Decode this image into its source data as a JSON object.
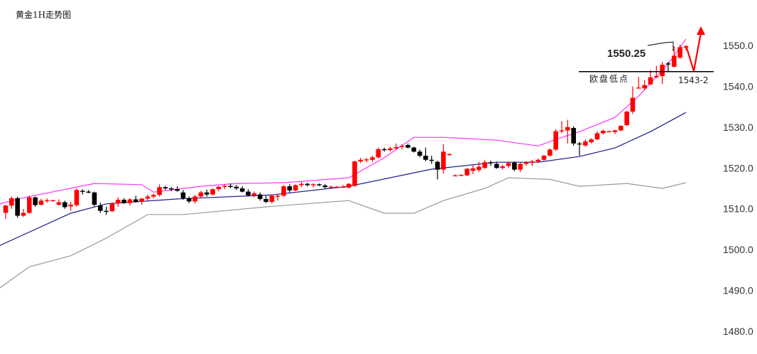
{
  "title": "黄金1H走势图",
  "chart_data": {
    "type": "candlestick",
    "title": "黄金1H走势图",
    "ylim": [
      1480,
      1550
    ],
    "yticks": [
      "1480.0",
      "1490.0",
      "1500.0",
      "1510.0",
      "1520.0",
      "1530.0",
      "1540.0",
      "1550.0"
    ],
    "colors": {
      "up": "#ff0000",
      "down": "#000000",
      "upper_band": "#ff33ff",
      "mid_band": "#1a1a8c",
      "lower_band": "#999999",
      "arrow": "#ff0000"
    },
    "ohlc": [
      [
        1509,
        1511,
        1507.5,
        1510.8
      ],
      [
        1510.8,
        1513,
        1510,
        1512.6
      ],
      [
        1512.6,
        1513,
        1507.8,
        1508.3
      ],
      [
        1508.3,
        1510,
        1508,
        1509
      ],
      [
        1509,
        1513.2,
        1508.8,
        1512.8
      ],
      [
        1512.8,
        1513,
        1510.5,
        1510.9
      ],
      [
        1511,
        1512.5,
        1510.8,
        1512
      ],
      [
        1512,
        1512.5,
        1511.5,
        1512.1
      ],
      [
        1512,
        1512.2,
        1511.8,
        1512.1
      ],
      [
        1511,
        1512.3,
        1510.8,
        1511.6
      ],
      [
        1511.6,
        1512,
        1510,
        1510.4
      ],
      [
        1510.6,
        1511.7,
        1509.5,
        1511
      ],
      [
        1510.9,
        1515,
        1510.5,
        1514.6
      ],
      [
        1514.4,
        1514.8,
        1513.5,
        1514.2
      ],
      [
        1514.2,
        1514.6,
        1513.8,
        1514
      ],
      [
        1514,
        1514.2,
        1510.6,
        1511
      ],
      [
        1510.8,
        1511.5,
        1509,
        1509.5
      ],
      [
        1509.5,
        1510.5,
        1508.5,
        1509.4
      ],
      [
        1509.4,
        1511.6,
        1509.2,
        1511.3
      ],
      [
        1511.3,
        1512.8,
        1510.5,
        1512.2
      ],
      [
        1512.2,
        1512.6,
        1511.2,
        1511.4
      ],
      [
        1511.4,
        1512.6,
        1510.8,
        1512.3
      ],
      [
        1512.3,
        1513.2,
        1511.5,
        1511.7
      ],
      [
        1511.7,
        1512.6,
        1511,
        1512.5
      ],
      [
        1512.5,
        1513.5,
        1512,
        1513
      ],
      [
        1513,
        1513.7,
        1512.5,
        1513.4
      ],
      [
        1513.4,
        1516,
        1513,
        1515.3
      ],
      [
        1515.3,
        1515.6,
        1514.6,
        1515
      ],
      [
        1515,
        1515.3,
        1514.3,
        1514.8
      ],
      [
        1514.8,
        1515.5,
        1514.2,
        1514.4
      ],
      [
        1514,
        1514.6,
        1512.2,
        1512.6
      ],
      [
        1512.6,
        1513,
        1511.4,
        1511.8
      ],
      [
        1511.8,
        1513.4,
        1511.3,
        1513
      ],
      [
        1513,
        1514.4,
        1512.8,
        1514
      ],
      [
        1514,
        1514.7,
        1513,
        1513.5
      ],
      [
        1513.5,
        1515,
        1513.3,
        1514.8
      ],
      [
        1514.8,
        1515.6,
        1514.3,
        1515.4
      ],
      [
        1515.4,
        1516,
        1514.8,
        1515.6
      ],
      [
        1515.6,
        1516.2,
        1515,
        1515.4
      ],
      [
        1515.4,
        1515.8,
        1514.6,
        1515
      ],
      [
        1515,
        1515.5,
        1514,
        1514.2
      ],
      [
        1514.2,
        1514.8,
        1513,
        1513.3
      ],
      [
        1513.3,
        1514.2,
        1512.8,
        1513.8
      ],
      [
        1513.5,
        1514,
        1512,
        1512.4
      ],
      [
        1512.4,
        1513.2,
        1511.4,
        1511.7
      ],
      [
        1511.7,
        1513.5,
        1511.3,
        1513.2
      ],
      [
        1513,
        1513.5,
        1512,
        1513.2
      ],
      [
        1513.2,
        1515.8,
        1513,
        1515.5
      ],
      [
        1515.5,
        1516,
        1514,
        1514.5
      ],
      [
        1514.5,
        1516,
        1514.3,
        1515.8
      ],
      [
        1515.8,
        1516.6,
        1515.3,
        1516.1
      ],
      [
        1516.1,
        1516.4,
        1515.5,
        1515.8
      ],
      [
        1515.8,
        1516.3,
        1515.2,
        1516
      ],
      [
        1516,
        1516.2,
        1515.5,
        1515.9
      ],
      [
        1515.7,
        1516.1,
        1515,
        1515.3
      ],
      [
        1515.3,
        1515.7,
        1515,
        1515.4
      ],
      [
        1515.4,
        1515.6,
        1515.2,
        1515.4
      ],
      [
        1515.3,
        1515.8,
        1515.1,
        1515.4
      ],
      [
        1515.2,
        1516.3,
        1515,
        1516.1
      ],
      [
        1515.6,
        1521.8,
        1515.4,
        1521.6
      ],
      [
        1521.6,
        1522.5,
        1521.2,
        1522
      ],
      [
        1522,
        1522.5,
        1521.4,
        1522.1
      ],
      [
        1522,
        1523,
        1521.5,
        1522.6
      ],
      [
        1522.6,
        1525,
        1522.3,
        1524.6
      ],
      [
        1524.6,
        1525,
        1524,
        1524.4
      ],
      [
        1524.4,
        1525.2,
        1524,
        1524.8
      ],
      [
        1524.8,
        1526,
        1524.5,
        1525.1
      ],
      [
        1525.2,
        1525.8,
        1524.6,
        1525.4
      ],
      [
        1525.6,
        1526,
        1524.8,
        1525
      ],
      [
        1525,
        1525.2,
        1523.8,
        1524
      ],
      [
        1524,
        1524.5,
        1522.6,
        1523
      ],
      [
        1523,
        1525,
        1521.6,
        1522
      ],
      [
        1522,
        1523,
        1521,
        1521.8
      ],
      [
        1521.5,
        1521.8,
        1517.2,
        1519.6
      ],
      [
        1519.6,
        1525.8,
        1518.6,
        1524
      ],
      [
        1523.2,
        1523.6,
        1523,
        1523.4
      ],
      [
        1518.2,
        1518.4,
        1518,
        1518.2
      ],
      [
        1518.3,
        1518.5,
        1518.1,
        1518.3
      ],
      [
        1518.2,
        1520,
        1518,
        1519.8
      ],
      [
        1519.3,
        1520.8,
        1518.5,
        1519.9
      ],
      [
        1519.5,
        1521.5,
        1519,
        1520.3
      ],
      [
        1520,
        1522,
        1519.8,
        1521.4
      ],
      [
        1521.4,
        1521.8,
        1520.5,
        1521.2
      ],
      [
        1521,
        1521.5,
        1519.8,
        1520
      ],
      [
        1520,
        1520.8,
        1519.6,
        1520.4
      ],
      [
        1520.5,
        1521.6,
        1520,
        1521.2
      ],
      [
        1521.3,
        1521.6,
        1519.2,
        1519.6
      ],
      [
        1519.6,
        1521.4,
        1519,
        1521
      ],
      [
        1521,
        1521.7,
        1520.5,
        1521.4
      ],
      [
        1521.3,
        1522,
        1520.5,
        1521.6
      ],
      [
        1521.6,
        1522.3,
        1521.2,
        1522
      ],
      [
        1522,
        1523.2,
        1521.8,
        1523
      ],
      [
        1523,
        1524.8,
        1522.8,
        1524.5
      ],
      [
        1524.5,
        1529.5,
        1524.2,
        1529
      ],
      [
        1529,
        1531.5,
        1528.5,
        1529.2
      ],
      [
        1529.2,
        1531.8,
        1526,
        1530
      ],
      [
        1529.8,
        1530.2,
        1525.5,
        1526
      ],
      [
        1526,
        1526.4,
        1523,
        1525.8
      ],
      [
        1525.5,
        1527,
        1525.2,
        1526.5
      ],
      [
        1526.3,
        1527.3,
        1526,
        1527
      ],
      [
        1527,
        1529,
        1526.8,
        1528.5
      ],
      [
        1528.5,
        1529.4,
        1528.2,
        1529.1
      ],
      [
        1529,
        1529.1,
        1528.9,
        1529
      ],
      [
        1528.8,
        1529.4,
        1528.3,
        1529.2
      ],
      [
        1529.2,
        1530.5,
        1529,
        1530.3
      ],
      [
        1530.5,
        1534,
        1530.3,
        1533.8
      ],
      [
        1533.8,
        1540,
        1533.2,
        1537.2
      ],
      [
        1539.6,
        1542.3,
        1539.5,
        1539.7
      ],
      [
        1539.5,
        1541.5,
        1539,
        1540.3
      ],
      [
        1540.5,
        1544,
        1540.3,
        1542.2
      ],
      [
        1542.2,
        1545,
        1542,
        1542.5
      ],
      [
        1542.5,
        1546,
        1540.6,
        1545.3
      ],
      [
        1545.6,
        1546,
        1543.7,
        1545.4
      ],
      [
        1544.8,
        1549.8,
        1544.6,
        1547.5
      ],
      [
        1547,
        1550.2,
        1546.8,
        1549.6
      ],
      [
        1549.5,
        1550,
        1548.8,
        1549.8
      ]
    ],
    "bands": {
      "upper": [
        [
          -1,
          1511.2
        ],
        [
          3,
          1512.7
        ],
        [
          15,
          1516.2
        ],
        [
          23,
          1515.9
        ],
        [
          25,
          1514.1
        ],
        [
          33,
          1515.5
        ],
        [
          39,
          1516.2
        ],
        [
          47,
          1516.4
        ],
        [
          58,
          1517.6
        ],
        [
          64,
          1522.5
        ],
        [
          69,
          1527.5
        ],
        [
          74,
          1527.5
        ],
        [
          83,
          1526.8
        ],
        [
          90,
          1525.4
        ],
        [
          93,
          1527
        ],
        [
          97,
          1528.9
        ],
        [
          103,
          1532.4
        ],
        [
          107,
          1537.6
        ],
        [
          112,
          1545.5
        ],
        [
          115,
          1551.6
        ]
      ],
      "middle": [
        [
          -1,
          1501
        ],
        [
          11,
          1508.9
        ],
        [
          17,
          1511.2
        ],
        [
          29,
          1512.4
        ],
        [
          45,
          1513.4
        ],
        [
          58,
          1515.5
        ],
        [
          72,
          1519.7
        ],
        [
          83,
          1521.4
        ],
        [
          90,
          1521.4
        ],
        [
          97,
          1522.8
        ],
        [
          103,
          1524.9
        ],
        [
          109,
          1528.9
        ],
        [
          115,
          1533.6
        ]
      ],
      "lower": [
        [
          -1,
          1490.6
        ],
        [
          4,
          1495.8
        ],
        [
          11,
          1498.5
        ],
        [
          17,
          1502.8
        ],
        [
          24,
          1508.6
        ],
        [
          30,
          1508.6
        ],
        [
          45,
          1510.6
        ],
        [
          58,
          1512
        ],
        [
          64,
          1508.9
        ],
        [
          69,
          1508.9
        ],
        [
          74,
          1512
        ],
        [
          81,
          1515
        ],
        [
          85,
          1517.6
        ],
        [
          92,
          1517.2
        ],
        [
          97,
          1515.5
        ],
        [
          105,
          1516.2
        ],
        [
          111,
          1515
        ],
        [
          115,
          1516.4
        ]
      ]
    },
    "annotations": {
      "high_label": "1550.25",
      "support_label": "欧盘低点",
      "support_value_label": "1543-2",
      "support_level": 1543.6
    }
  }
}
